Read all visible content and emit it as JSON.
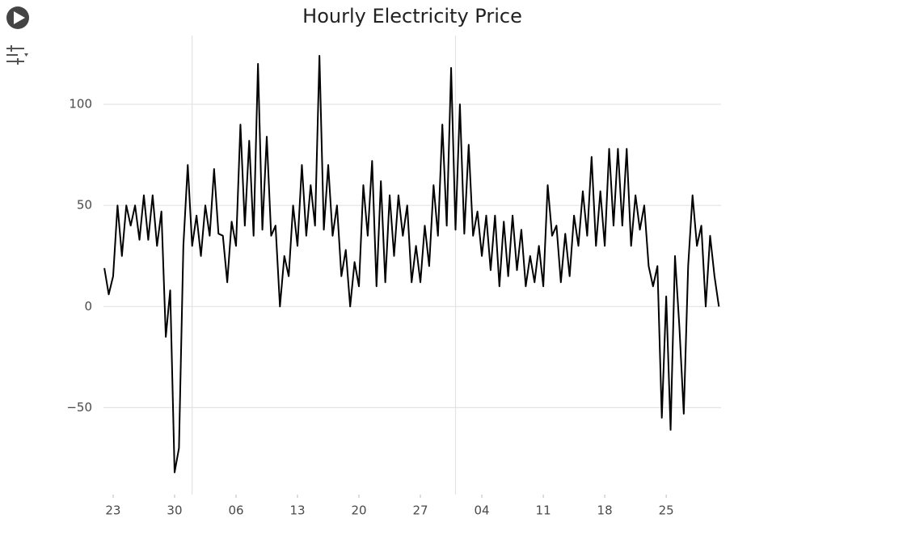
{
  "chart_data": {
    "type": "line",
    "title": "Hourly Electricity Price",
    "color": "#000000",
    "grid": true,
    "x": [
      -1,
      -0.5,
      0,
      0.5,
      1,
      1.5,
      2,
      2.5,
      3,
      3.5,
      4,
      4.5,
      5,
      5.5,
      6,
      6.5,
      7,
      7.5,
      8,
      8.5,
      9,
      9.5,
      10,
      10.5,
      11,
      11.5,
      12,
      12.5,
      13,
      13.5,
      14,
      14.5,
      15,
      15.5,
      16,
      16.5,
      17,
      17.5,
      18,
      18.5,
      19,
      19.5,
      20,
      20.5,
      21,
      21.5,
      22,
      22.5,
      23,
      23.5,
      24,
      24.5,
      25,
      25.5,
      26,
      26.5,
      27,
      27.5,
      28,
      28.5,
      29,
      29.5,
      30,
      30.5,
      31,
      31.5,
      32,
      32.5,
      33,
      33.5,
      34,
      34.5,
      35,
      35.5,
      36,
      36.5,
      37,
      37.5,
      38,
      38.5,
      39,
      39.5,
      40,
      40.5,
      41,
      41.5,
      42,
      42.5,
      43,
      43.5,
      44,
      44.5,
      45,
      45.5,
      46,
      46.5,
      47,
      47.5,
      48,
      48.5,
      49,
      49.5,
      50,
      50.5,
      51,
      51.5,
      52,
      52.5,
      53,
      53.5,
      54,
      54.5,
      55,
      55.5,
      56,
      56.5,
      57,
      57.5,
      58,
      58.5,
      59,
      59.5,
      60,
      60.5,
      61,
      61.5,
      62,
      62.5,
      63,
      63.5,
      64,
      64.5,
      65,
      65.5,
      66,
      66.5,
      67,
      67.5,
      68,
      68.5,
      69
    ],
    "values": [
      19,
      6,
      15,
      50,
      25,
      50,
      40,
      50,
      33,
      55,
      33,
      55,
      30,
      47,
      -15,
      8,
      -82,
      -70,
      30,
      70,
      30,
      45,
      25,
      50,
      35,
      68,
      36,
      35,
      12,
      42,
      30,
      90,
      40,
      82,
      35,
      120,
      38,
      84,
      35,
      40,
      0,
      25,
      15,
      50,
      30,
      70,
      35,
      60,
      40,
      124,
      38,
      70,
      35,
      50,
      15,
      28,
      0,
      22,
      10,
      60,
      35,
      72,
      10,
      62,
      12,
      55,
      25,
      55,
      35,
      50,
      12,
      30,
      12,
      40,
      20,
      60,
      35,
      90,
      40,
      118,
      38,
      100,
      36,
      80,
      35,
      47,
      25,
      45,
      18,
      45,
      10,
      42,
      15,
      45,
      18,
      38,
      10,
      25,
      12,
      30,
      10,
      60,
      35,
      40,
      12,
      36,
      15,
      45,
      30,
      57,
      35,
      74,
      30,
      57,
      30,
      78,
      40,
      78,
      40,
      78,
      30,
      55,
      38,
      50,
      20,
      10,
      20,
      -55,
      5,
      -61,
      25,
      -10,
      -53,
      20,
      55,
      30,
      40,
      0,
      35,
      15,
      0
    ],
    "xlim": [
      -1.1,
      69.25
    ],
    "xticks": [
      {
        "value": 0,
        "label": "23"
      },
      {
        "value": 7,
        "label": "30"
      },
      {
        "value": 14,
        "label": "06"
      },
      {
        "value": 21,
        "label": "13"
      },
      {
        "value": 28,
        "label": "20"
      },
      {
        "value": 35,
        "label": "27"
      },
      {
        "value": 42,
        "label": "04"
      },
      {
        "value": 49,
        "label": "11"
      },
      {
        "value": 56,
        "label": "18"
      },
      {
        "value": 63,
        "label": "25"
      }
    ],
    "month_start_lines": [
      9,
      39
    ],
    "ylim": [
      -93,
      134
    ],
    "yticks": [
      {
        "value": -50,
        "label": "−50"
      },
      0,
      50,
      100
    ]
  }
}
